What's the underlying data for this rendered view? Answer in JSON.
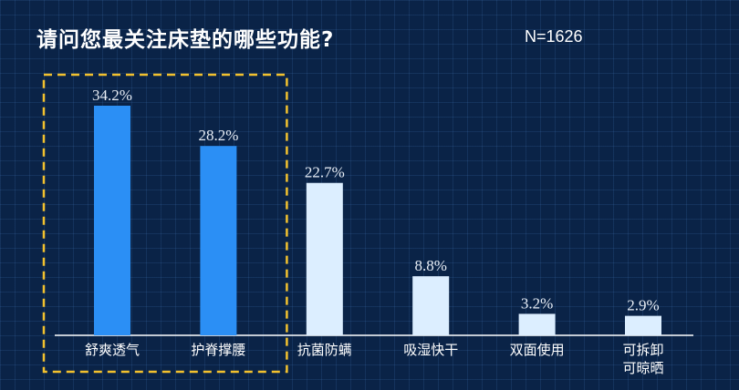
{
  "header": {
    "title": "请问您最关注床垫的哪些功能?",
    "sample_size": "N=1626"
  },
  "colors": {
    "background": "#0a2347",
    "highlight_bar": "#2b8ff5",
    "normal_bar": "#dceeff",
    "highlight_box": "#f2c12e"
  },
  "chart_data": {
    "type": "bar",
    "title": "请问您最关注床垫的哪些功能?",
    "categories": [
      "舒爽透气",
      "护脊撑腰",
      "抗菌防螨",
      "吸湿快干",
      "双面使用",
      "可拆卸\n可晾晒"
    ],
    "values": [
      34.2,
      28.2,
      22.7,
      8.8,
      3.2,
      2.9
    ],
    "value_labels": [
      "34.2%",
      "28.2%",
      "22.7%",
      "8.8%",
      "3.2%",
      "2.9%"
    ],
    "highlighted": [
      true,
      true,
      false,
      false,
      false,
      false
    ],
    "ylim": [
      0,
      34.2
    ],
    "xlabel": "",
    "ylabel": "",
    "grid": false,
    "legend": "none"
  }
}
